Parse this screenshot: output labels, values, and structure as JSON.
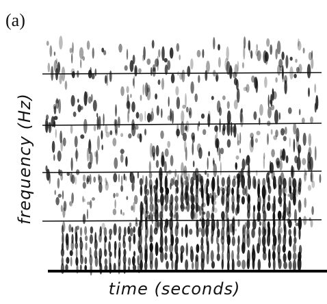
{
  "label": "(a)",
  "y_axis_label": "frequency (Hz)",
  "x_axis_label": "time (seconds)"
}
